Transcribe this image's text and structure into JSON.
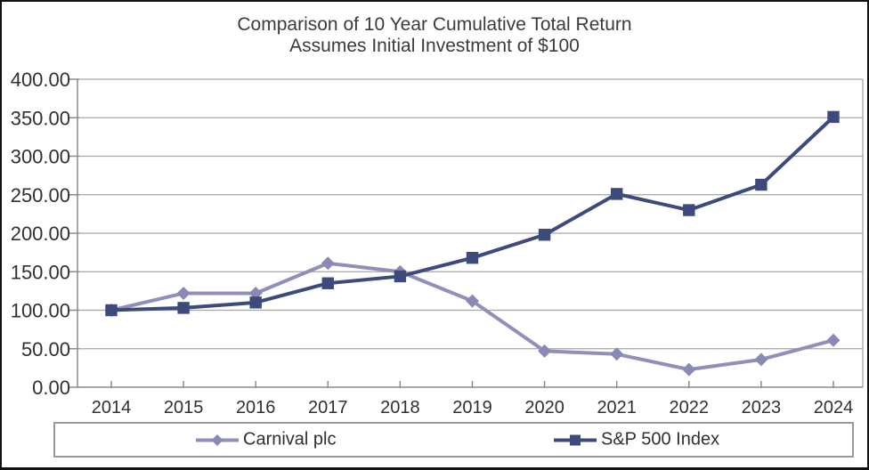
{
  "title": {
    "line1": "Comparison of 10 Year Cumulative Total Return",
    "line2": "Assumes Initial Investment of $100"
  },
  "colors": {
    "carnival_line": "#8f8fba",
    "carnival_marker": "#8a89b6",
    "sp500_line": "#3c4a7c",
    "sp500_marker": "#3c4a7c",
    "gridline": "#a6a6a6",
    "axis": "#8c8c8c",
    "text": "#303030",
    "legend_border": "#9a9a9a"
  },
  "chart_data": {
    "type": "line",
    "title": "Comparison of 10 Year Cumulative Total Return",
    "subtitle": "Assumes Initial Investment of $100",
    "xlabel": "",
    "ylabel": "",
    "categories": [
      "2014",
      "2015",
      "2016",
      "2017",
      "2018",
      "2019",
      "2020",
      "2021",
      "2022",
      "2023",
      "2024"
    ],
    "series": [
      {
        "name": "Carnival plc",
        "marker": "diamond",
        "color": "#8f8fba",
        "marker_color": "#8a89b6",
        "values": [
          100,
          122,
          122,
          161,
          150,
          112,
          47,
          43,
          23,
          36,
          61
        ]
      },
      {
        "name": "S&P 500 Index",
        "marker": "square",
        "color": "#3c4a7c",
        "marker_color": "#3c4a7c",
        "values": [
          100,
          103,
          110,
          135,
          144,
          168,
          198,
          251,
          230,
          263,
          351
        ]
      }
    ],
    "ylim": [
      0,
      400
    ],
    "y_tick_interval": 50,
    "y_ticks": [
      "400.00",
      "350.00",
      "300.00",
      "250.00",
      "200.00",
      "150.00",
      "100.00",
      "50.00",
      "0.00"
    ],
    "grid": true,
    "legend_position": "bottom"
  }
}
